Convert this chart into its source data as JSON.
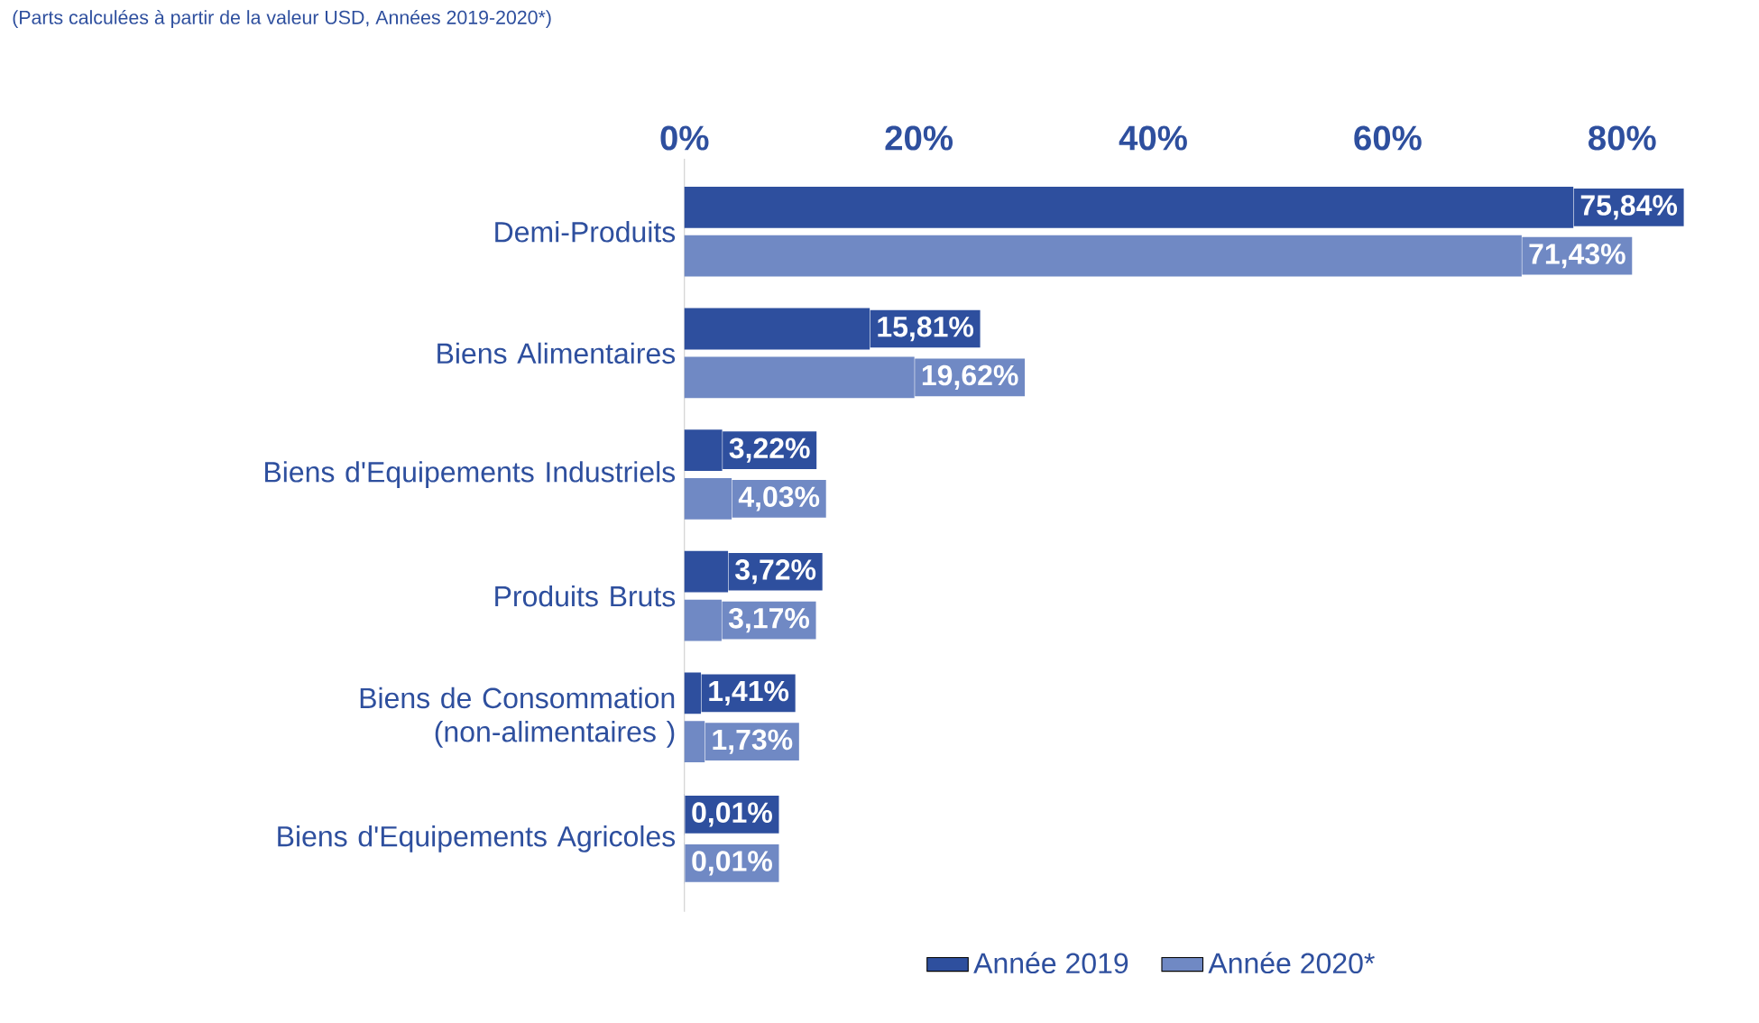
{
  "chart_data": {
    "type": "bar",
    "orientation": "horizontal",
    "subtitle": "(Parts calculées à partir de la valeur USD, Années 2019-2020*)",
    "categories": [
      "Demi-Produits",
      "Biens Alimentaires",
      "Biens d'Equipements Industriels",
      "Produits Bruts",
      "Biens de Consommation (non-alimentaires )",
      "Biens d'Equipements Agricoles"
    ],
    "series": [
      {
        "name": "Année 2019",
        "color": "#2e4f9e",
        "values": [
          75.84,
          15.81,
          3.22,
          3.72,
          1.41,
          0.01
        ],
        "value_labels": [
          "75,84%",
          "15,81%",
          "3,22%",
          "3,72%",
          "1,41%",
          "0,01%"
        ]
      },
      {
        "name": "Année 2020*",
        "color": "#7089c4",
        "values": [
          71.43,
          19.62,
          4.03,
          3.17,
          1.73,
          0.01
        ],
        "value_labels": [
          "71,43%",
          "19,62%",
          "4,03%",
          "3,17%",
          "1,73%",
          "0,01%"
        ]
      }
    ],
    "xlim": [
      0,
      80
    ],
    "xticks": [
      {
        "value": 0,
        "label": "0%"
      },
      {
        "value": 20,
        "label": "20%"
      },
      {
        "value": 40,
        "label": "40%"
      },
      {
        "value": 60,
        "label": "60%"
      },
      {
        "value": 80,
        "label": "80%"
      }
    ],
    "legend": "bottom"
  }
}
